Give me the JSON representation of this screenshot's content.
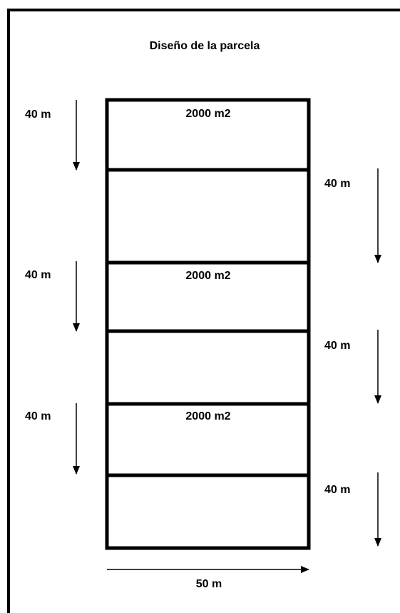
{
  "title": "Diseño de la parcela",
  "plots": [
    {
      "area": "2000 m2"
    },
    {
      "area": "2000 m2"
    },
    {
      "area": "2000 m2"
    }
  ],
  "left_lengths": [
    "40 m",
    "40 m",
    "40 m"
  ],
  "right_lengths": [
    "40 m",
    "40 m",
    "40 m"
  ],
  "width": "50 m"
}
